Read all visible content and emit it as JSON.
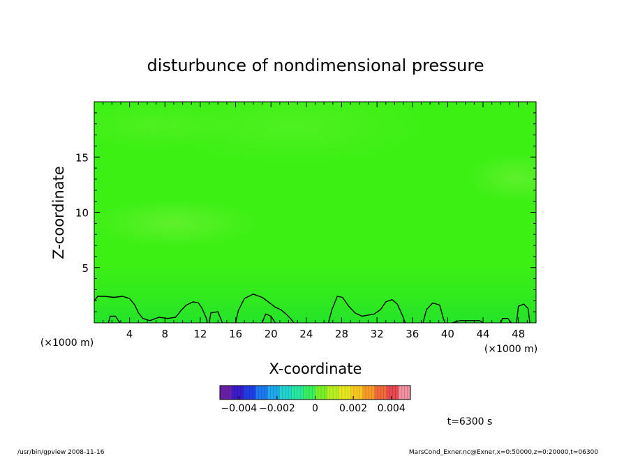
{
  "chart_data": {
    "type": "heatmap",
    "title": "disturbunce of nondimensional pressure",
    "xlabel": "X-coordinate",
    "ylabel": "Z-coordinate",
    "x_unit": "(×1000 m)",
    "y_unit": "(×1000 m)",
    "xlim": [
      0,
      50
    ],
    "ylim": [
      0,
      20
    ],
    "x_ticks": [
      4,
      8,
      12,
      16,
      20,
      24,
      28,
      32,
      36,
      40,
      44,
      48
    ],
    "y_ticks": [
      5,
      10,
      15
    ],
    "field_color_base": "#3cf014",
    "colorbar": {
      "tick_labels": [
        "−0.004",
        "−0.002",
        "0",
        "0.002",
        "0.004"
      ],
      "range": [
        -0.005,
        0.005
      ],
      "colors_low_to_high": [
        "#6a1fa8",
        "#3a1cc8",
        "#1e3ee6",
        "#1e78f0",
        "#1ea8ee",
        "#22d4d0",
        "#28e8a0",
        "#38f060",
        "#78f028",
        "#b8f020",
        "#e8e81e",
        "#f8c820",
        "#f89a28",
        "#f06a3a",
        "#e84850",
        "#f090a0"
      ]
    },
    "contour_level": 0,
    "contours": [
      [
        [
          0.0,
          2.0
        ],
        [
          0.4,
          2.4
        ],
        [
          1.2,
          2.4
        ],
        [
          2.2,
          2.3
        ],
        [
          3.2,
          2.4
        ],
        [
          4.0,
          2.2
        ],
        [
          4.6,
          1.6
        ],
        [
          5.0,
          0.9
        ],
        [
          5.5,
          0.4
        ],
        [
          6.3,
          0.2
        ],
        [
          7.3,
          0.5
        ],
        [
          8.3,
          0.4
        ],
        [
          9.2,
          0.5
        ],
        [
          9.8,
          1.1
        ],
        [
          10.4,
          1.6
        ],
        [
          11.2,
          1.9
        ],
        [
          11.8,
          1.8
        ],
        [
          12.2,
          1.3
        ],
        [
          12.7,
          0.4
        ],
        [
          12.8,
          0.0
        ]
      ],
      [
        [
          1.6,
          0.0
        ],
        [
          1.8,
          0.6
        ],
        [
          2.4,
          0.6
        ],
        [
          2.9,
          0.0
        ]
      ],
      [
        [
          13.0,
          0.0
        ],
        [
          13.2,
          0.9
        ],
        [
          14.0,
          1.0
        ],
        [
          14.5,
          0.0
        ]
      ],
      [
        [
          16.0,
          0.0
        ],
        [
          16.3,
          1.1
        ],
        [
          17.0,
          2.2
        ],
        [
          18.0,
          2.6
        ],
        [
          19.0,
          2.3
        ],
        [
          19.7,
          1.9
        ],
        [
          20.5,
          1.4
        ],
        [
          21.1,
          1.2
        ],
        [
          21.7,
          0.8
        ],
        [
          22.2,
          0.4
        ],
        [
          22.6,
          0.0
        ]
      ],
      [
        [
          19.0,
          0.0
        ],
        [
          19.4,
          0.8
        ],
        [
          20.0,
          0.6
        ],
        [
          20.5,
          0.0
        ]
      ],
      [
        [
          26.5,
          0.0
        ],
        [
          26.9,
          1.2
        ],
        [
          27.5,
          2.4
        ],
        [
          28.1,
          2.3
        ],
        [
          28.8,
          1.5
        ],
        [
          29.5,
          0.9
        ],
        [
          30.3,
          0.6
        ],
        [
          31.0,
          0.7
        ],
        [
          31.7,
          0.8
        ],
        [
          32.4,
          1.2
        ],
        [
          33.0,
          1.9
        ],
        [
          33.7,
          2.1
        ],
        [
          34.3,
          1.7
        ],
        [
          34.8,
          0.8
        ],
        [
          35.2,
          0.0
        ]
      ],
      [
        [
          37.2,
          0.0
        ],
        [
          37.6,
          1.2
        ],
        [
          38.3,
          1.8
        ],
        [
          39.1,
          1.6
        ],
        [
          39.5,
          0.4
        ],
        [
          39.7,
          0.0
        ]
      ],
      [
        [
          40.5,
          0.0
        ],
        [
          41.4,
          0.2
        ],
        [
          42.8,
          0.2
        ],
        [
          43.6,
          0.2
        ],
        [
          44.0,
          0.0
        ]
      ],
      [
        [
          46.0,
          0.0
        ],
        [
          46.2,
          0.4
        ],
        [
          46.8,
          0.4
        ],
        [
          47.2,
          0.0
        ]
      ],
      [
        [
          47.8,
          0.0
        ],
        [
          48.0,
          1.5
        ],
        [
          48.6,
          1.7
        ],
        [
          49.1,
          1.3
        ],
        [
          49.3,
          0.0
        ]
      ]
    ]
  },
  "annotations": {
    "time_label": "t=6300 s",
    "footer_left": "/usr/bin/gpview   2008-11-16",
    "footer_right": "MarsCond_Exner.nc@Exner,x=0:50000,z=0:20000,t=06300"
  }
}
